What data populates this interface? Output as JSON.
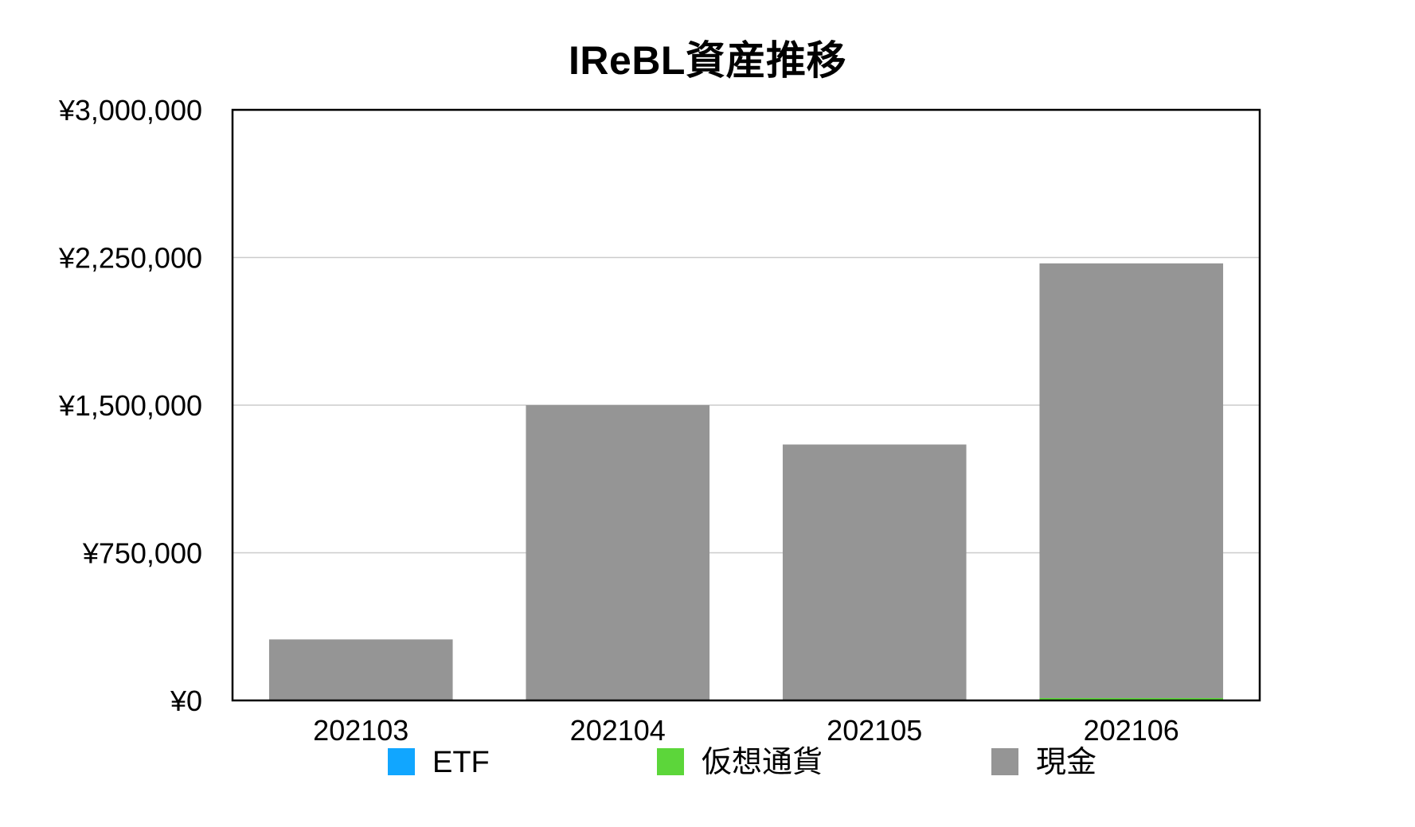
{
  "chart_data": {
    "type": "bar",
    "stacked": true,
    "title": "IReBL資産推移",
    "xlabel": "",
    "ylabel": "",
    "categories": [
      "202103",
      "202104",
      "202105",
      "202106"
    ],
    "series": [
      {
        "name": "ETF",
        "color": "#11a6ff",
        "values": [
          0,
          0,
          0,
          0
        ]
      },
      {
        "name": "仮想通貨",
        "color": "#5cd63a",
        "values": [
          0,
          0,
          4000,
          12000
        ]
      },
      {
        "name": "現金",
        "color": "#959595",
        "values": [
          310000,
          1500000,
          1296000,
          2208000
        ]
      }
    ],
    "ylim": [
      0,
      3000000
    ],
    "yticks": [
      0,
      750000,
      1500000,
      2250000,
      3000000
    ],
    "ytick_labels": [
      "¥0",
      "¥750,000",
      "¥1,500,000",
      "¥2,250,000",
      "¥3,000,000"
    ],
    "grid": true,
    "legend_position": "bottom"
  }
}
